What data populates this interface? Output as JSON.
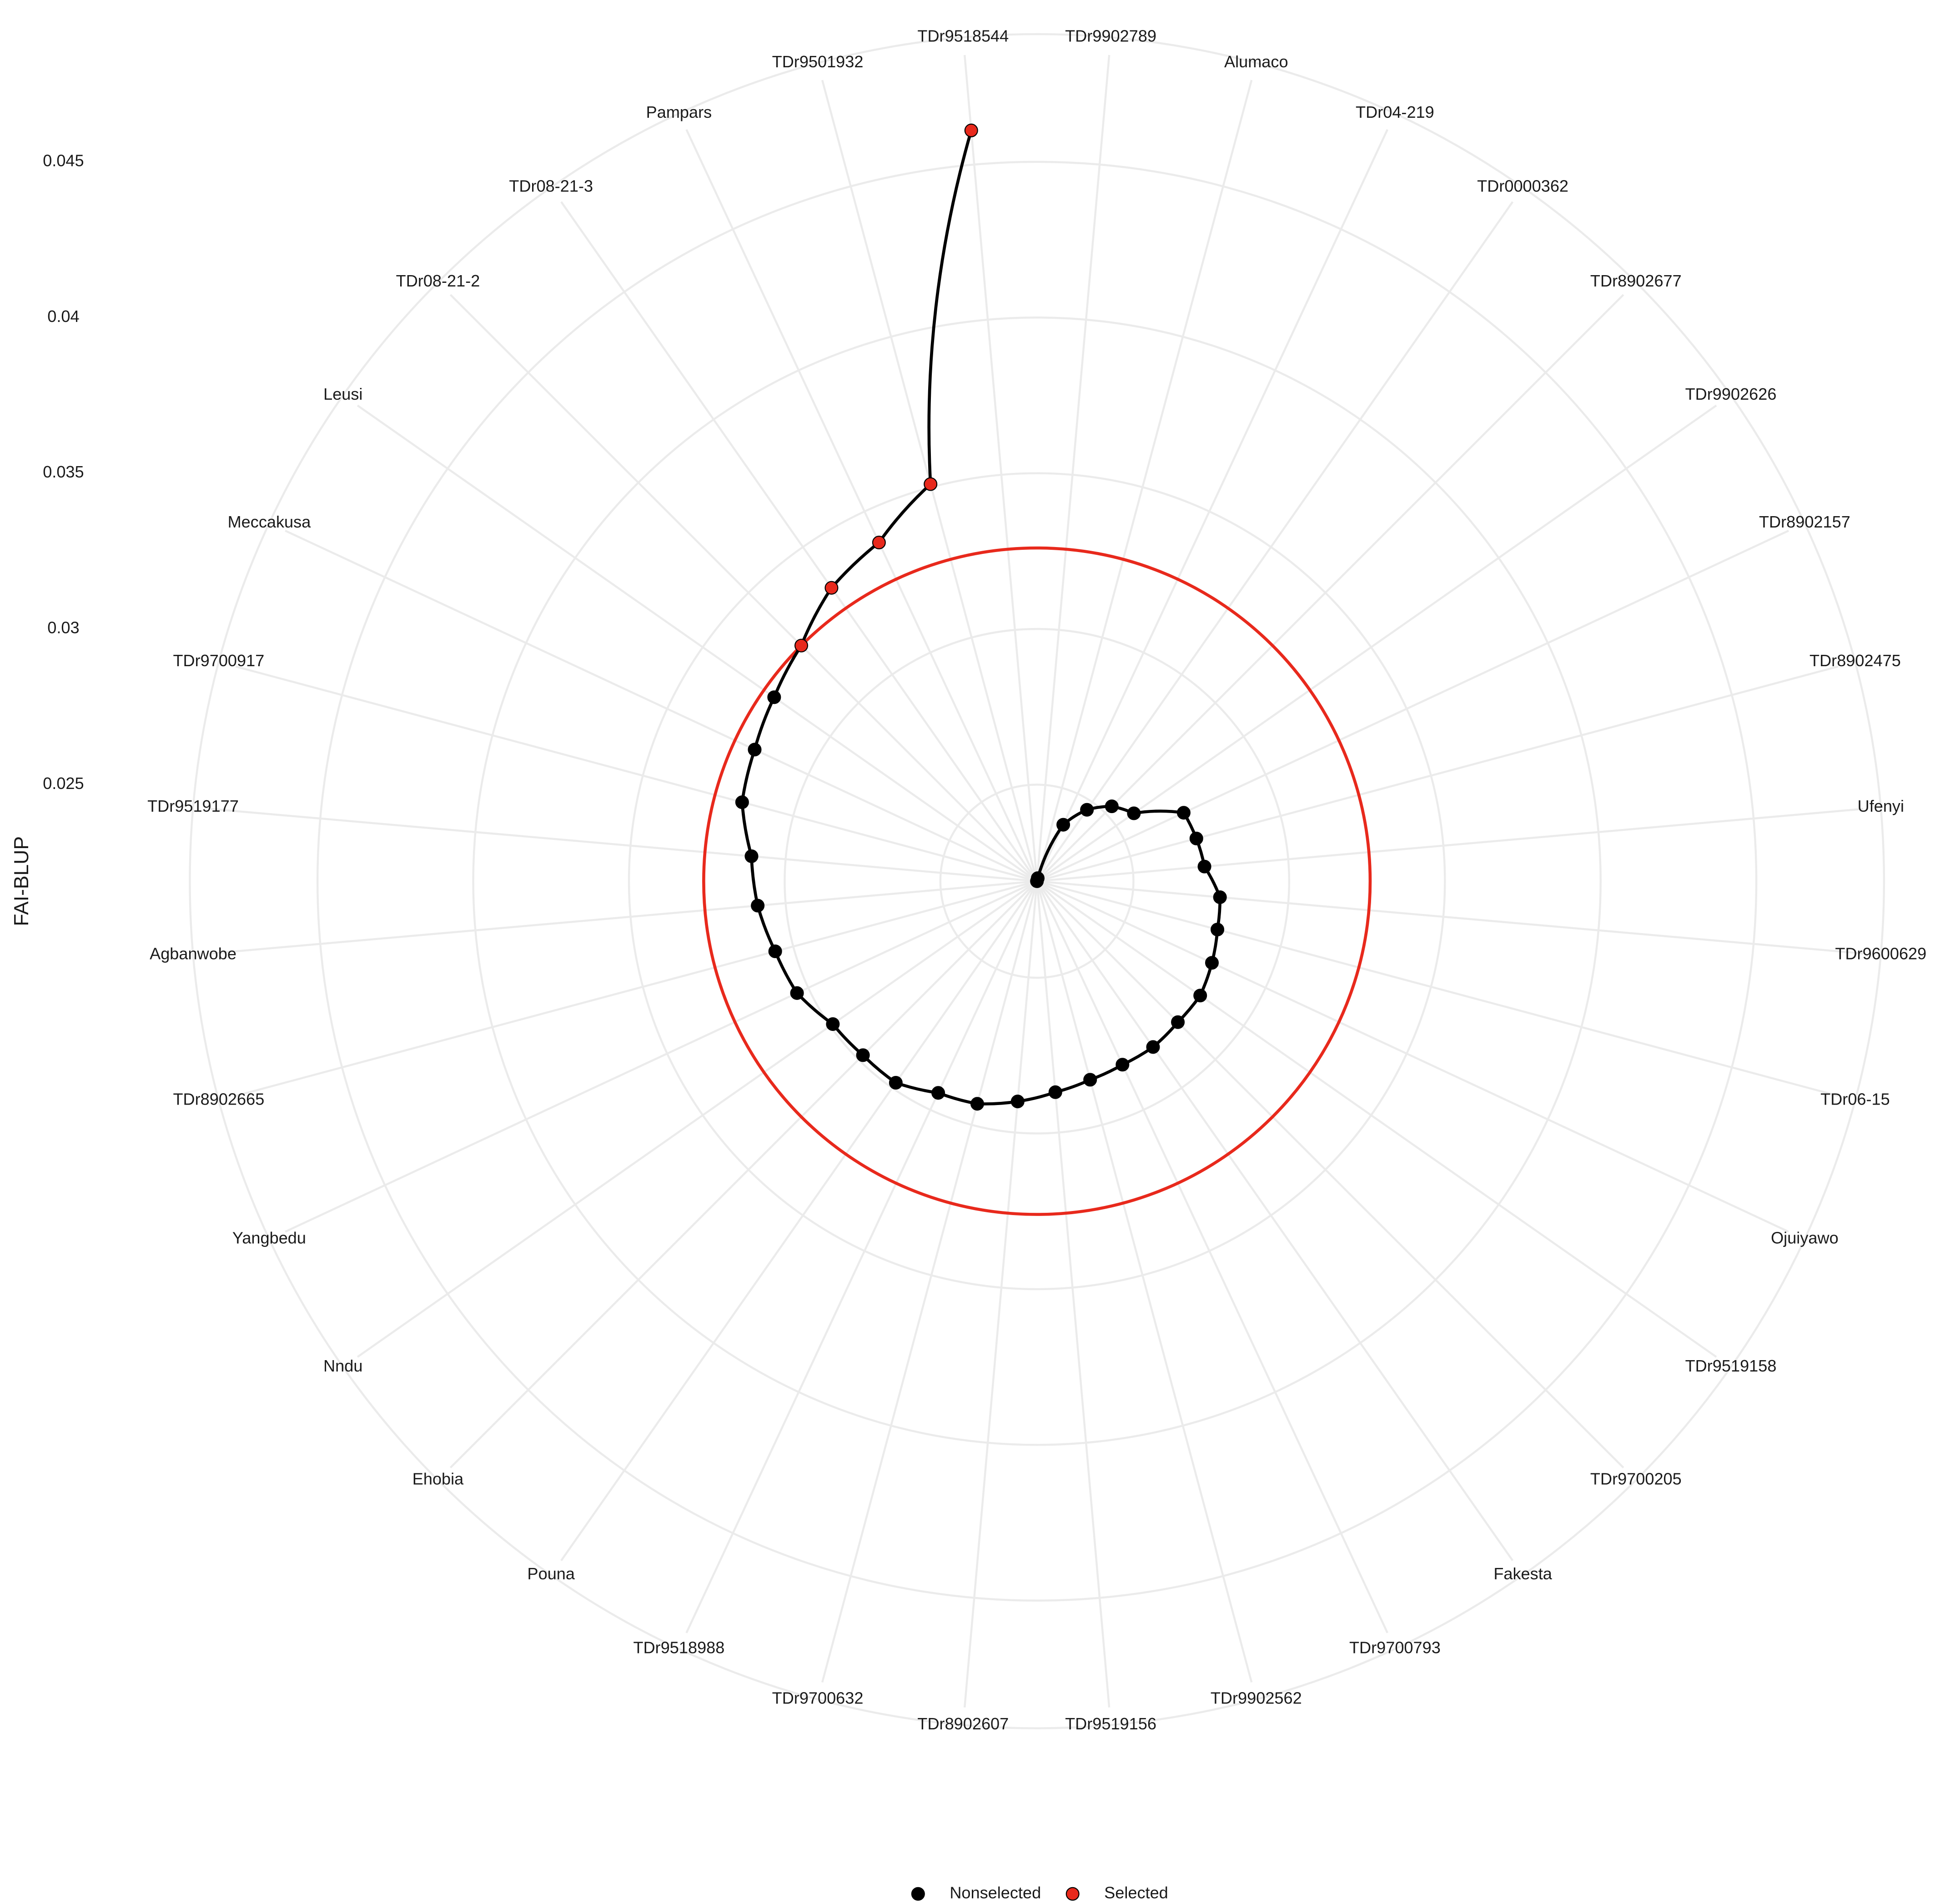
{
  "chart_data": {
    "type": "polar-line",
    "y_label": "FAI-BLUP",
    "categories": [
      "TDr9902789",
      "Alumaco",
      "TDr04-219",
      "TDr0000362",
      "TDr8902677",
      "TDr9902626",
      "TDr8902157",
      "TDr8902475",
      "Ufenyi",
      "TDr9600629",
      "TDr06-15",
      "Ojuiyawo",
      "TDr9519158",
      "TDr9700205",
      "Fakesta",
      "TDr9700793",
      "TDr9902562",
      "TDr9519156",
      "TDr8902607",
      "TDr9700632",
      "TDr9518988",
      "Pouna",
      "Ehobia",
      "Nndu",
      "Yangbedu",
      "TDr8902665",
      "Agbanwobe",
      "TDr9519177",
      "TDr9700917",
      "Meccakusa",
      "Leusi",
      "TDr08-21-2",
      "TDr08-21-3",
      "Pampars",
      "TDr9501932",
      "TDr9518544"
    ],
    "series": [
      {
        "name": "Nonselected",
        "color": "#000000",
        "values": [
          0.0219,
          0.022,
          0.0239,
          0.0247,
          0.0253,
          0.0257,
          0.0271,
          0.0272,
          0.0273,
          0.0278,
          0.0279,
          0.0281,
          0.0283,
          0.0283,
          0.0284,
          0.0284,
          0.0285,
          0.0287,
          0.029,
          0.0293,
          0.0294,
          0.0298,
          0.0298,
          0.0299,
          0.0304,
          0.0306,
          0.0309,
          0.0311,
          0.0317,
          0.0319,
          0.0322,
          null,
          null,
          null,
          null,
          null
        ]
      },
      {
        "name": "Selected",
        "color": "#e8291c",
        "values": [
          null,
          null,
          null,
          null,
          null,
          null,
          null,
          null,
          null,
          null,
          null,
          null,
          null,
          null,
          null,
          null,
          null,
          null,
          null,
          null,
          null,
          null,
          null,
          null,
          null,
          null,
          null,
          null,
          null,
          null,
          null,
          0.0326,
          0.0334,
          0.0339,
          0.0351,
          0.0461
        ]
      }
    ],
    "line_color": "#000000",
    "threshold": 0.0326,
    "threshold_color": "#e8291c",
    "ylim": [
      0.0219,
      0.0491
    ],
    "yticks": [
      0.025,
      0.03,
      0.035,
      0.04,
      0.045
    ],
    "grid": true,
    "legend": "bottom"
  }
}
